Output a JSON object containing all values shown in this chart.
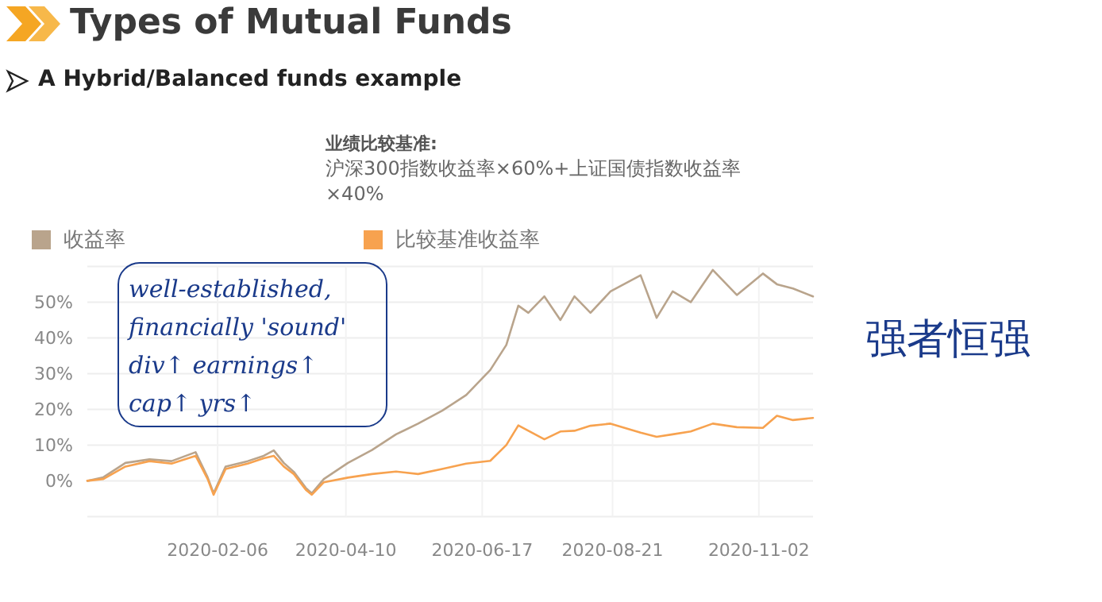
{
  "chart_data": {
    "type": "line",
    "title": "Types of Mutual Funds",
    "subtitle": "A Hybrid/Balanced funds example",
    "annotations": [
      "业绩比较基准:",
      "沪深300指数收益率×60%+上证国债指数收益率×40%",
      "well-established, financially 'sound' div↑ earnings↑ cap↑ yrs↑",
      "强者恒强"
    ],
    "x": [
      "2019-12-03",
      "2019-12-11",
      "2019-12-22",
      "2020-01-03",
      "2020-01-14",
      "2020-01-26",
      "2020-02-01",
      "2020-02-04",
      "2020-02-10",
      "2020-02-21",
      "2020-02-29",
      "2020-03-05",
      "2020-03-10",
      "2020-03-15",
      "2020-03-21",
      "2020-03-24",
      "2020-03-30",
      "2020-04-11",
      "2020-04-23",
      "2020-05-05",
      "2020-05-16",
      "2020-05-28",
      "2020-06-09",
      "2020-06-21",
      "2020-06-29",
      "2020-07-05",
      "2020-07-10",
      "2020-07-18",
      "2020-07-26",
      "2020-08-02",
      "2020-08-10",
      "2020-08-20",
      "2020-09-04",
      "2020-09-12",
      "2020-09-20",
      "2020-09-29",
      "2020-10-10",
      "2020-10-22",
      "2020-11-04",
      "2020-11-11",
      "2020-11-19",
      "2020-11-29"
    ],
    "series": [
      {
        "name": "收益率",
        "color": "#b9a48c",
        "values": [
          0,
          1,
          5,
          6,
          5.5,
          8,
          1,
          -3.5,
          4,
          5.5,
          7,
          8.5,
          5,
          2.5,
          -2,
          -3.5,
          0.5,
          5,
          8.6,
          13,
          16,
          19.6,
          24,
          31,
          38,
          49,
          47,
          51.6,
          45,
          51.6,
          47,
          53,
          57.5,
          45.6,
          53,
          50,
          59,
          52,
          58,
          55,
          53.8,
          51.6
        ]
      },
      {
        "name": "比较基准收益率",
        "color": "#f7a24f",
        "values": [
          0,
          0.5,
          4,
          5.5,
          4.8,
          7,
          0.5,
          -3.9,
          3.3,
          4.8,
          6.3,
          7,
          4,
          1.9,
          -2.5,
          -3.9,
          -0.4,
          0.9,
          1.9,
          2.6,
          1.9,
          3.3,
          4.8,
          5.6,
          10,
          15.5,
          14,
          11.6,
          13.8,
          14,
          15.4,
          16,
          13.5,
          12.3,
          13,
          13.8,
          16,
          15,
          14.8,
          18.2,
          17,
          17.6
        ]
      }
    ],
    "xlim": [
      "2019-12-03",
      "2020-11-29"
    ],
    "xticks": [
      "2020-02-06",
      "2020-04-10",
      "2020-06-17",
      "2020-08-21",
      "2020-11-02"
    ],
    "ylim": [
      -10,
      60
    ],
    "yticks": [
      {
        "value": -10,
        "label": null
      },
      {
        "value": 0,
        "label": "0%"
      },
      {
        "value": 10,
        "label": "10%"
      },
      {
        "value": 20,
        "label": "20%"
      },
      {
        "value": 30,
        "label": "30%"
      },
      {
        "value": 40,
        "label": "40%"
      },
      {
        "value": 50,
        "label": "50%"
      },
      {
        "value": 60,
        "label": null
      }
    ],
    "grid": true,
    "legend": "top",
    "marker": "none",
    "line_style": "solid"
  }
}
